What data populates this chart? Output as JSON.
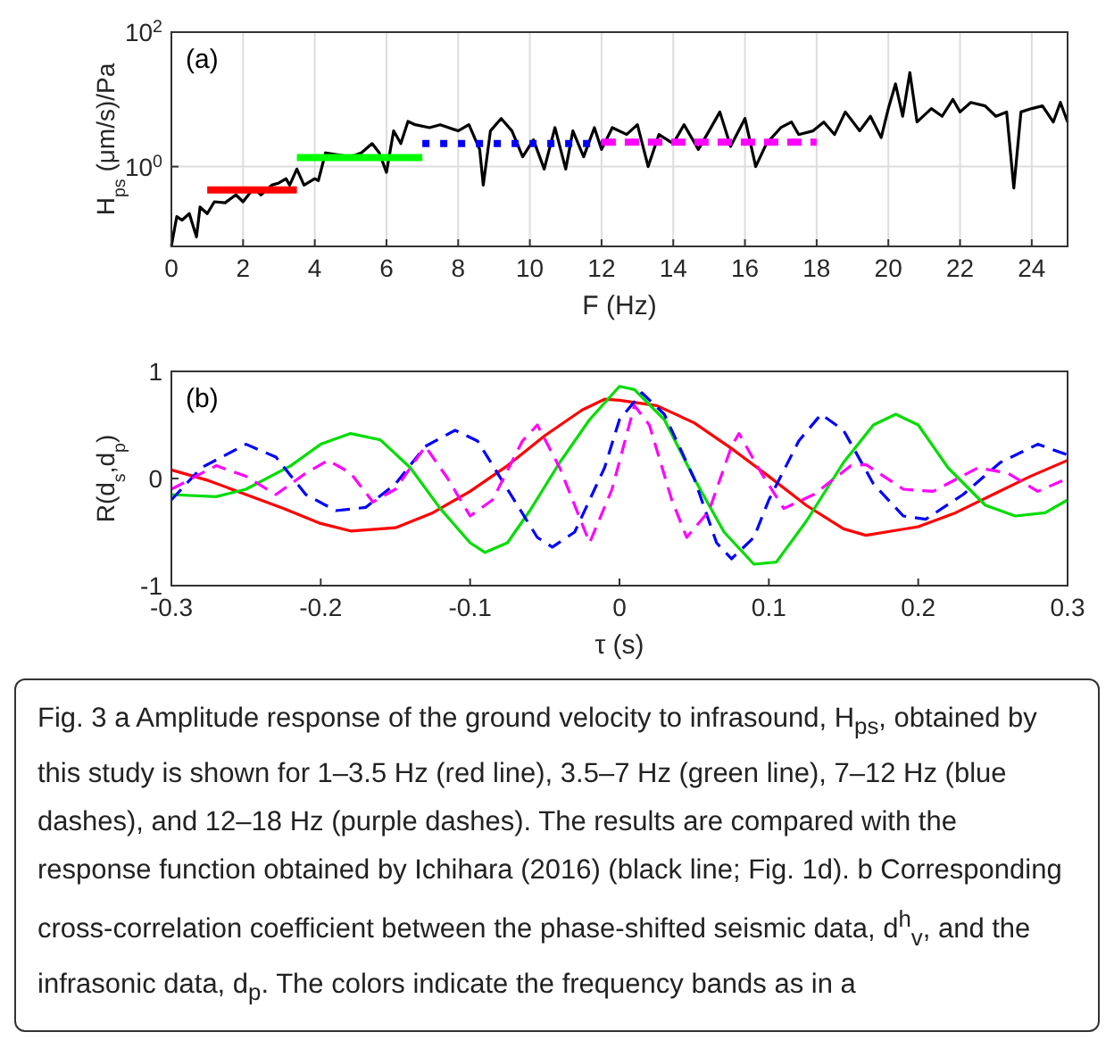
{
  "chart_data": [
    {
      "type": "line",
      "title": "(a)",
      "xlabel": "F (Hz)",
      "ylabel": "H$_{ps}$ (μm/s)/Pa",
      "log": "y",
      "grid": true,
      "xlim": [
        0,
        25
      ],
      "xticks": [
        0,
        2,
        4,
        6,
        8,
        10,
        12,
        14,
        16,
        18,
        20,
        22,
        24
      ],
      "ylim": [
        0.065,
        100
      ],
      "yticks": [
        {
          "value": 1,
          "label": "10$^{0}$"
        },
        {
          "value": 100,
          "label": "10$^{2}$"
        }
      ],
      "series": [
        {
          "color": "#000000",
          "line_style": "solid",
          "x": [
            0,
            0.15,
            0.3,
            0.5,
            0.7,
            0.8,
            1.0,
            1.2,
            1.5,
            1.8,
            2.0,
            2.3,
            2.5,
            2.8,
            3.0,
            3.2,
            3.3,
            3.5,
            3.7,
            4.0,
            4.1,
            4.3,
            4.6,
            5.0,
            5.3,
            5.6,
            5.8,
            6.0,
            6.2,
            6.4,
            6.6,
            6.8,
            7.2,
            7.5,
            8.0,
            8.3,
            8.6,
            8.7,
            8.9,
            9.2,
            9.5,
            9.8,
            10.1,
            10.4,
            10.7,
            11.0,
            11.2,
            11.5,
            11.8,
            12.0,
            12.3,
            12.7,
            13.0,
            13.3,
            13.6,
            14.0,
            14.3,
            14.7,
            15.0,
            15.3,
            15.6,
            16.0,
            16.3,
            16.6,
            17.0,
            17.3,
            17.5,
            17.9,
            18.2,
            18.5,
            18.8,
            19.2,
            19.5,
            19.8,
            20.0,
            20.2,
            20.4,
            20.6,
            20.8,
            21.2,
            21.5,
            21.8,
            22.0,
            22.3,
            22.7,
            23.0,
            23.3,
            23.5,
            23.7,
            24.0,
            24.3,
            24.6,
            24.8,
            25
          ],
          "values": [
            0.066,
            0.18,
            0.16,
            0.2,
            0.09,
            0.25,
            0.2,
            0.3,
            0.29,
            0.38,
            0.3,
            0.48,
            0.38,
            0.53,
            0.57,
            0.66,
            0.53,
            0.92,
            0.53,
            0.66,
            0.62,
            1.6,
            null,
            1.4,
            1.6,
            2.2,
            1.6,
            0.82,
            3.4,
            2.2,
            4.7,
            4.2,
            3.8,
            4.2,
            3.4,
            4.2,
            1.8,
            0.53,
            3.4,
            5.2,
            3.4,
            1.4,
            2.5,
            0.92,
            3.8,
            0.92,
            3.4,
            1.4,
            3.8,
            1.8,
            3.8,
            3.0,
            4.2,
            1.0,
            3.0,
            2.2,
            4.2,
            1.8,
            3.4,
            6.5,
            2.0,
            5.2,
            1.0,
            2.2,
            3.8,
            4.6,
            3.0,
            3.4,
            4.6,
            3.0,
            6.5,
            3.4,
            5.6,
            2.7,
            7.3,
            17,
            5.6,
            25,
            4.6,
            7.3,
            5.6,
            10,
            6.5,
            9,
            8,
            5.6,
            6.5,
            0.48,
            6.5,
            7.3,
            8,
            4.6,
            9,
            4.6
          ]
        },
        {
          "color": "#ff0000",
          "line_style": "solid",
          "x": [
            1,
            3.5
          ],
          "values": [
            0.45,
            0.45
          ]
        },
        {
          "color": "#00ff00",
          "line_style": "solid",
          "x": [
            3.5,
            7
          ],
          "values": [
            1.36,
            1.36
          ]
        },
        {
          "color": "#0000ff",
          "line_style": "dotted",
          "x": [
            7,
            12
          ],
          "values": [
            2.2,
            2.2
          ]
        },
        {
          "color": "#ff00ff",
          "line_style": "dashed",
          "x": [
            12,
            18
          ],
          "values": [
            2.3,
            2.3
          ]
        }
      ]
    },
    {
      "type": "line",
      "title": "(b)",
      "xlabel": "τ (s)",
      "ylabel": "R(d$_{s}$,d$_{p}$)",
      "xlim": [
        -0.3,
        0.3
      ],
      "xticks": [
        -0.3,
        -0.2,
        -0.1,
        0,
        0.1,
        0.2,
        0.3
      ],
      "ylim": [
        -1,
        1
      ],
      "yticks": [
        -1,
        0,
        1
      ],
      "annotations": [
        "Fig. 3  a Amplitude response of the ground velocity to infrasound, H$_{ps}$, obtained by this study is shown for 1–3.5 Hz (red line), 3.5–7 Hz (green line), 7–12 Hz (blue dashes), and 12–18 Hz (purple dashes). The results are compared with the response function obtained by Ichihara (2016) (black line; Fig. 1d). b Corresponding cross-correlation coefficient between the phase-shifted seismic data, d$^{h}$$_{v}$, and the infrasonic data, d$_{p}$. The colors indicate the frequency bands as in a"
      ],
      "series": [
        {
          "color": "#ff0000",
          "line_style": "solid",
          "x": [
            -0.3,
            -0.275,
            -0.25,
            -0.225,
            -0.2,
            -0.18,
            -0.15,
            -0.125,
            -0.1,
            -0.075,
            -0.05,
            -0.025,
            -0.01,
            0,
            0.025,
            0.05,
            0.075,
            0.1,
            0.125,
            0.15,
            0.165,
            0.2,
            0.225,
            0.25,
            0.275,
            0.3
          ],
          "values": [
            0.08,
            -0.02,
            -0.15,
            -0.28,
            -0.42,
            -0.49,
            -0.46,
            -0.32,
            -0.12,
            0.12,
            0.4,
            0.64,
            0.74,
            0.73,
            0.68,
            0.52,
            0.28,
            0.02,
            -0.25,
            -0.47,
            -0.53,
            -0.45,
            -0.32,
            -0.15,
            0.02,
            0.17
          ]
        },
        {
          "color": "#00dd00",
          "line_style": "solid",
          "x": [
            -0.3,
            -0.27,
            -0.25,
            -0.22,
            -0.2,
            -0.18,
            -0.16,
            -0.14,
            -0.12,
            -0.1,
            -0.09,
            -0.075,
            -0.06,
            -0.04,
            -0.02,
            0,
            0.01,
            0.03,
            0.05,
            0.07,
            0.09,
            0.105,
            0.125,
            0.15,
            0.17,
            0.185,
            0.2,
            0.22,
            0.245,
            0.265,
            0.285,
            0.3
          ],
          "values": [
            -0.15,
            -0.17,
            -0.1,
            0.12,
            0.32,
            0.42,
            0.36,
            0.1,
            -0.28,
            -0.6,
            -0.69,
            -0.6,
            -0.3,
            0.15,
            0.55,
            0.86,
            0.83,
            0.55,
            0,
            -0.5,
            -0.8,
            -0.78,
            -0.4,
            0.15,
            0.5,
            0.6,
            0.5,
            0.1,
            -0.25,
            -0.35,
            -0.32,
            -0.2
          ]
        },
        {
          "color": "#0000ff",
          "line_style": "dashed",
          "x": [
            -0.3,
            -0.28,
            -0.25,
            -0.23,
            -0.21,
            -0.19,
            -0.17,
            -0.15,
            -0.13,
            -0.11,
            -0.095,
            -0.075,
            -0.055,
            -0.045,
            -0.03,
            -0.01,
            0,
            0.015,
            0.03,
            0.05,
            0.065,
            0.075,
            0.09,
            0.1,
            0.12,
            0.135,
            0.15,
            0.17,
            0.19,
            0.205,
            0.23,
            0.255,
            0.28,
            0.3
          ],
          "values": [
            -0.2,
            0.1,
            0.32,
            0.2,
            -0.15,
            -0.3,
            -0.27,
            -0.05,
            0.3,
            0.45,
            0.35,
            -0.1,
            -0.55,
            -0.64,
            -0.5,
            0.1,
            0.55,
            0.8,
            0.6,
            0,
            -0.6,
            -0.75,
            -0.55,
            -0.2,
            0.35,
            0.6,
            0.45,
            -0.05,
            -0.35,
            -0.38,
            -0.15,
            0.15,
            0.32,
            0.22
          ]
        },
        {
          "color": "#ff00ff",
          "line_style": "dashed",
          "x": [
            -0.3,
            -0.27,
            -0.25,
            -0.23,
            -0.21,
            -0.195,
            -0.18,
            -0.165,
            -0.15,
            -0.13,
            -0.115,
            -0.1,
            -0.085,
            -0.065,
            -0.055,
            -0.04,
            -0.02,
            -0.005,
            0.01,
            0.02,
            0.035,
            0.045,
            0.06,
            0.075,
            0.08,
            0.095,
            0.11,
            0.13,
            0.155,
            0.165,
            0.19,
            0.21,
            0.24,
            0.26,
            0.28,
            0.3
          ],
          "values": [
            -0.1,
            0.12,
            0.02,
            -0.15,
            0.05,
            0.17,
            0.05,
            -0.22,
            -0.1,
            0.3,
            0,
            -0.35,
            -0.2,
            0.35,
            0.5,
            0.1,
            -0.6,
            -0.1,
            0.68,
            0.5,
            -0.2,
            -0.55,
            -0.3,
            0.3,
            0.42,
            0.05,
            -0.28,
            -0.15,
            0.12,
            0.13,
            -0.1,
            -0.12,
            0.1,
            0.05,
            -0.12,
            0
          ]
        }
      ]
    }
  ]
}
